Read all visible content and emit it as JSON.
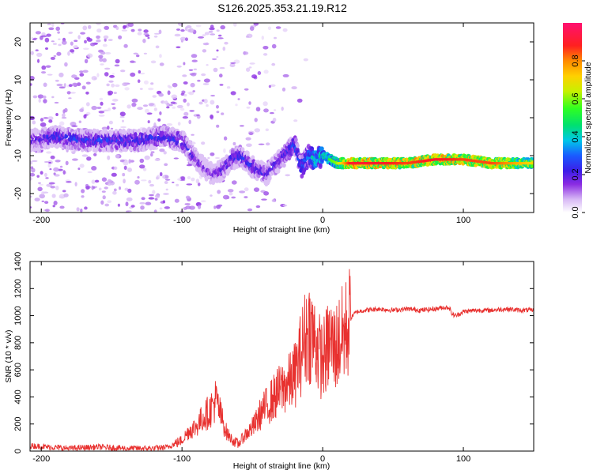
{
  "title": "S126.2025.353.21.19.R12",
  "colors": {
    "snr_line": "#e8312f",
    "spectrogram_low": "#7a1fd6",
    "spectrogram_high": "#e8243a"
  },
  "chart_data": [
    {
      "type": "heatmap",
      "xlabel": "Height of straight line (km)",
      "ylabel": "Frequency (Hz)",
      "xlim": [
        -208,
        150
      ],
      "ylim": [
        -25,
        25
      ],
      "x_ticks": [
        -200,
        -100,
        0,
        100
      ],
      "y_ticks": [
        -20,
        -10,
        0,
        10,
        20
      ],
      "colorbar": {
        "label": "Normalized spectral amplitude",
        "range": [
          0,
          1
        ],
        "ticks": [
          "0.0",
          "0.2",
          "0.4",
          "0.6",
          "0.8"
        ]
      },
      "ridge": {
        "x": [
          -208,
          -190,
          -170,
          -150,
          -130,
          -115,
          -100,
          -92,
          -85,
          -78,
          -72,
          -65,
          -58,
          -50,
          -40,
          -30,
          -25,
          -20,
          -15,
          -10,
          -5,
          0,
          10,
          20,
          40,
          60,
          80,
          100,
          120,
          150
        ],
        "y": [
          -6,
          -5,
          -6,
          -6,
          -6,
          -5,
          -6,
          -10,
          -13,
          -15,
          -14,
          -11,
          -10,
          -13,
          -15,
          -11,
          -9,
          -7,
          -13,
          -10,
          -11,
          -10,
          -12,
          -12,
          -12,
          -12,
          -11,
          -11,
          -12,
          -12
        ],
        "amplitude": [
          0.25,
          0.3,
          0.3,
          0.3,
          0.3,
          0.3,
          0.3,
          0.25,
          0.2,
          0.2,
          0.25,
          0.3,
          0.3,
          0.3,
          0.25,
          0.3,
          0.3,
          0.35,
          0.35,
          0.4,
          0.5,
          0.5,
          0.6,
          0.9,
          0.9,
          0.85,
          0.9,
          0.85,
          0.85,
          0.7
        ]
      }
    },
    {
      "type": "line",
      "xlabel": "Height of straight line (km)",
      "ylabel": "SNR (10 * v/v)",
      "xlim": [
        -208,
        150
      ],
      "ylim": [
        0,
        1400
      ],
      "x_ticks": [
        -200,
        -100,
        0,
        100
      ],
      "y_ticks": [
        0,
        200,
        400,
        600,
        800,
        1000,
        1200,
        1400
      ],
      "series": [
        {
          "x": [
            -208,
            -195,
            -180,
            -160,
            -140,
            -120,
            -110,
            -100,
            -95,
            -90,
            -85,
            -80,
            -76,
            -72,
            -68,
            -64,
            -60,
            -56,
            -52,
            -48,
            -44,
            -40,
            -36,
            -32,
            -28,
            -24,
            -20,
            -18,
            -16,
            -14,
            -12,
            -10,
            -8,
            -6,
            -4,
            -2,
            0,
            2,
            4,
            6,
            8,
            10,
            12,
            14,
            16,
            18,
            20,
            22,
            25,
            30,
            40,
            50,
            60,
            70,
            80,
            85,
            90,
            92,
            95,
            100,
            110,
            120,
            130,
            140,
            150
          ],
          "values": [
            40,
            30,
            20,
            30,
            20,
            20,
            30,
            80,
            150,
            180,
            250,
            300,
            380,
            250,
            130,
            80,
            50,
            110,
            150,
            200,
            280,
            330,
            380,
            430,
            470,
            500,
            560,
            620,
            700,
            780,
            850,
            900,
            870,
            820,
            780,
            700,
            680,
            720,
            780,
            800,
            760,
            780,
            820,
            850,
            880,
            930,
            980,
            1010,
            1030,
            1040,
            1050,
            1040,
            1050,
            1040,
            1050,
            1060,
            1060,
            1010,
            1000,
            1030,
            1040,
            1040,
            1050,
            1040,
            1040
          ]
        }
      ]
    }
  ]
}
